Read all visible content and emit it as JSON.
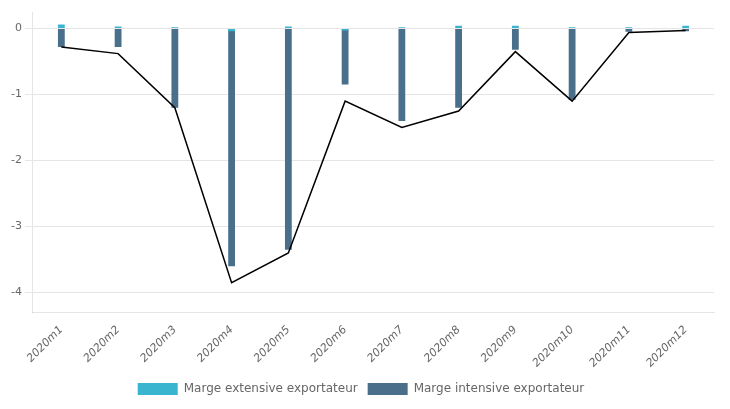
{
  "chart_data": {
    "type": "bar",
    "categories": [
      "2020m1",
      "2020m2",
      "2020m3",
      "2020m4",
      "2020m5",
      "2020m6",
      "2020m7",
      "2020m8",
      "2020m9",
      "2020m10",
      "2020m11",
      "2020m12"
    ],
    "series": [
      {
        "name": "Marge intensive exportateur",
        "color": "#4a6f8a",
        "values": [
          -0.28,
          -0.28,
          -1.2,
          -3.6,
          -3.35,
          -0.85,
          -1.4,
          -1.2,
          -0.32,
          -1.08,
          -0.05,
          -0.04
        ]
      },
      {
        "name": "Marge extensive exportateur",
        "color": "#3ab5d0",
        "values": [
          0.06,
          0.03,
          0.02,
          -0.04,
          0.03,
          -0.03,
          0.02,
          0.04,
          0.04,
          0.02,
          0.02,
          0.04
        ]
      },
      {
        "type": "line",
        "color": "#000000",
        "values": [
          -0.28,
          -0.38,
          -1.2,
          -3.85,
          -3.4,
          -1.1,
          -1.5,
          -1.25,
          -0.35,
          -1.1,
          -0.06,
          -0.03
        ]
      }
    ],
    "ylim": [
      -4.3,
      0.25
    ],
    "yticks": [
      0,
      -1,
      -2,
      -3,
      -4
    ],
    "grid": true,
    "legend": "bottom"
  }
}
